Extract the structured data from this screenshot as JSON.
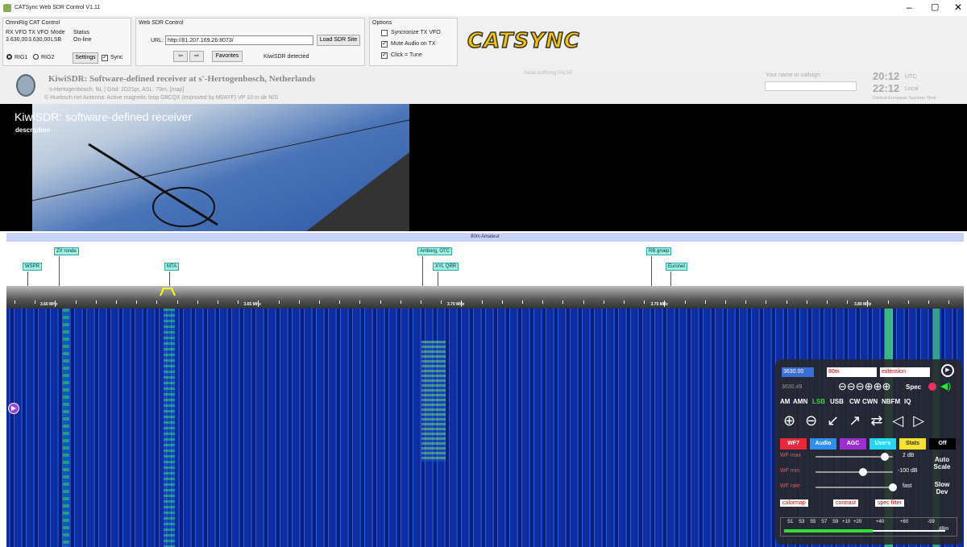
{
  "window": {
    "title": "CATSync Web SDR Control V1.11"
  },
  "omnirig": {
    "title": "OmniRig CAT Control",
    "fields": [
      {
        "label": "RX VFO",
        "value": "3.630,00"
      },
      {
        "label": "TX VFO",
        "value": "3.630,00"
      },
      {
        "label": "Mode",
        "value": "LSB"
      },
      {
        "label": "Status",
        "value": "On-line"
      }
    ],
    "rig1": "RIG1",
    "rig2": "RIG2",
    "settings": "Settings",
    "sync": "Sync"
  },
  "web_sdr": {
    "title": "Web SDR Control",
    "url_label": "URL:",
    "url": "http://81.207.169.26:8073/",
    "load": "Load SDR Site",
    "favorites": "Favorites",
    "status": "KiwiSDR detected"
  },
  "options": {
    "title": "Options",
    "items": [
      "Syncronize TX VFO",
      "Mute Audio on TX",
      "Click = Tune"
    ]
  },
  "logo": "CATSYNC",
  "kiwi": {
    "title": "KiwiSDR: Software-defined receiver at s'-Hertogenbosch, Netherlands",
    "location": "'s-Hertogenbosch, NL | Grid: JO21pr, ASL: 79m, [map]",
    "antenna": "© Huebsch.net  Antenna: Active magnetic loop G8CQX (improved by M0AYF) VP 10 m dir N/S",
    "audio_status": "Audio buffering FALSE",
    "callsign_label": "Your name or callsign:",
    "utc_time": "20:12",
    "utc_label": "UTC",
    "local_time": "22:12",
    "local_label": "Local",
    "timezone": "Central European Summer Time"
  },
  "photo": {
    "title": "KiwiSDR: software-defined receiver",
    "description": "description"
  },
  "band": "80m Amateur",
  "band_labels": [
    "ZX ronde",
    "WSPR",
    "MTA",
    "Amberg, OTC",
    "XYL QRR",
    "RB groep",
    "Euronet"
  ],
  "scale_labels": [
    "3.60 MHz",
    "3.65 MHz",
    "3.70 MHz",
    "3.75 MHz",
    "3.80 MHz"
  ],
  "panel": {
    "frequency": "3630.00",
    "band_select": "80m",
    "extension": "extension",
    "cursor_freq": "3630.49",
    "spec": "Spec",
    "modes": [
      "AM",
      "AMN",
      "LSB",
      "USB",
      "CW",
      "CWN",
      "NBFM",
      "IQ"
    ],
    "tabs": [
      "WF7",
      "Audio",
      "AGC",
      "Users",
      "Stats",
      "Off"
    ],
    "sliders": [
      {
        "label": "WF max",
        "value": "2 dB"
      },
      {
        "label": "WF min",
        "value": "-100 dB"
      },
      {
        "label": "WF rate",
        "value": "fast"
      }
    ],
    "auto_scale": "Auto Scale",
    "slow_dev": "Slow Dev",
    "menus": [
      "colormap",
      "contrast",
      "spec filter"
    ],
    "smeter": [
      "S1",
      "S3",
      "S5",
      "S7",
      "S9",
      "+10",
      "+20",
      "+40",
      "+60",
      "-59",
      "dBm"
    ]
  }
}
